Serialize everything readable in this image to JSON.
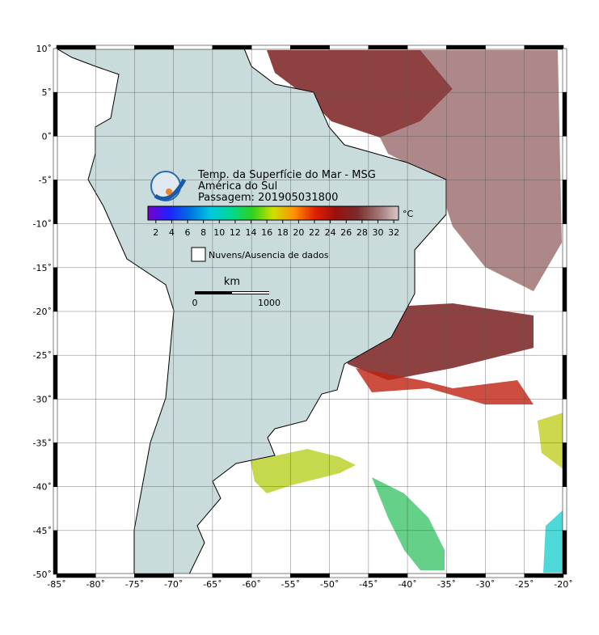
{
  "map": {
    "title_lines": [
      "Temp. da Superfície do Mar - MSG",
      "América do Sul",
      "Passagem: 201905031800"
    ],
    "colorbar": {
      "ticks": [
        2,
        4,
        6,
        8,
        10,
        12,
        14,
        16,
        18,
        20,
        22,
        24,
        26,
        28,
        30,
        32
      ],
      "clim": [
        1,
        32.6
      ],
      "unit": "°C",
      "colors": [
        "#7a00c8",
        "#2020ff",
        "#0070e0",
        "#00c8e0",
        "#00d890",
        "#30d020",
        "#d0e000",
        "#ff9000",
        "#e02000",
        "#9a1010",
        "#7a2a2a",
        "#a07070",
        "#d8c8c8"
      ]
    },
    "legend": "Nuvens/Ausencia de dados",
    "scale_bar": {
      "unit": "km",
      "start": "0",
      "end": "1000"
    },
    "xlim": [
      -85,
      -20
    ],
    "ylim": [
      -50,
      10
    ],
    "xticks": [
      {
        "value": -85,
        "label": "-85˚"
      },
      {
        "value": -80,
        "label": "-80˚"
      },
      {
        "value": -75,
        "label": "-75˚"
      },
      {
        "value": -70,
        "label": "-70˚"
      },
      {
        "value": -65,
        "label": "-65˚"
      },
      {
        "value": -60,
        "label": "-60˚"
      },
      {
        "value": -55,
        "label": "-55˚"
      },
      {
        "value": -50,
        "label": "-50˚"
      },
      {
        "value": -45,
        "label": "-45˚"
      },
      {
        "value": -40,
        "label": "-40˚"
      },
      {
        "value": -35,
        "label": "-35˚"
      },
      {
        "value": -30,
        "label": "-30˚"
      },
      {
        "value": -25,
        "label": "-25˚"
      },
      {
        "value": -20,
        "label": "-20˚"
      }
    ],
    "yticks": [
      {
        "value": 10,
        "label": "10˚"
      },
      {
        "value": 5,
        "label": "5˚"
      },
      {
        "value": 0,
        "label": "0˚"
      },
      {
        "value": -5,
        "label": "-5˚"
      },
      {
        "value": -10,
        "label": "-10˚"
      },
      {
        "value": -15,
        "label": "-15˚"
      },
      {
        "value": -20,
        "label": "-20˚"
      },
      {
        "value": -25,
        "label": "-25˚"
      },
      {
        "value": -30,
        "label": "-30˚"
      },
      {
        "value": -35,
        "label": "-35˚"
      },
      {
        "value": -40,
        "label": "-40˚"
      },
      {
        "value": -45,
        "label": "-45˚"
      },
      {
        "value": -50,
        "label": "-50˚"
      }
    ]
  }
}
